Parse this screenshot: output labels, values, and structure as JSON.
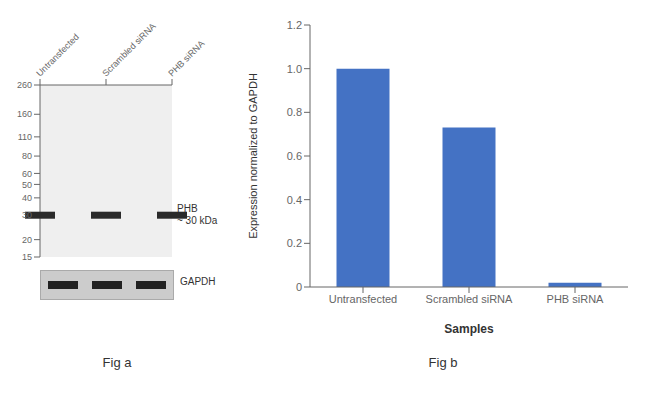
{
  "chart_data": [
    {
      "type": "blot",
      "title": "Fig a",
      "categories": [
        "Untransfected",
        "Scrambled siRNA",
        "PHB siRNA"
      ],
      "values": [
        30,
        30,
        30
      ],
      "ylim": [
        15,
        260
      ],
      "yticks": [
        260,
        160,
        110,
        80,
        60,
        50,
        40,
        30,
        20,
        15
      ],
      "log": "y",
      "annotations": [
        "PHB",
        "~ 30 kDa",
        "GAPDH"
      ]
    },
    {
      "type": "bar",
      "title": "Fig b",
      "categories": [
        "Untransfected",
        "Scrambled siRNA",
        "PHB siRNA"
      ],
      "values": [
        1.0,
        0.73,
        0.02
      ],
      "color": "#4472C4",
      "ylabel": "Expression normalized to GAPDH",
      "xlabel": "Samples",
      "ylim": [
        0,
        1.2
      ],
      "yticks": [
        0,
        0.2,
        0.4,
        0.6,
        0.8,
        {
          "value": 1,
          "label": "1.0"
        },
        1.2
      ]
    }
  ]
}
